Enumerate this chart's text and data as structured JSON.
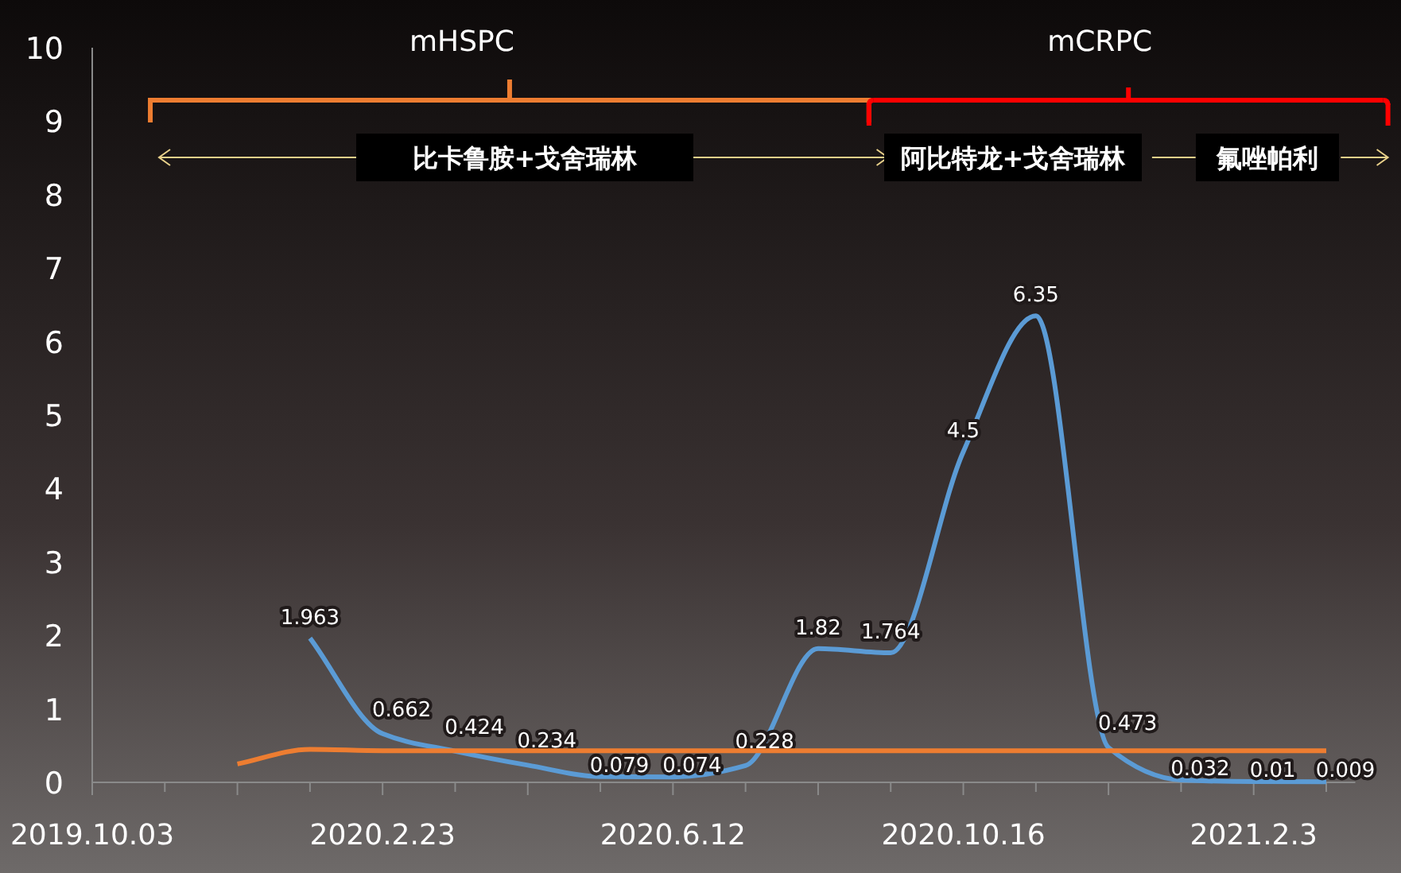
{
  "chart_data": {
    "type": "line",
    "categories": [
      "2019.10.03",
      null,
      null,
      null,
      "2020.2.23",
      null,
      null,
      null,
      "2020.6.12",
      null,
      null,
      null,
      "2020.10.16",
      null,
      null,
      null,
      "2021.2.3",
      null
    ],
    "series": [
      {
        "color": "#5b9bd5",
        "values": [
          null,
          null,
          null,
          1.963,
          0.662,
          0.424,
          0.234,
          0.079,
          0.074,
          0.228,
          1.82,
          1.764,
          4.5,
          6.35,
          0.473,
          0.032,
          0.01,
          0.009
        ],
        "value_labels": [
          null,
          null,
          null,
          "1.963",
          "0.662",
          "0.424",
          "0.234",
          "0.079",
          "0.074",
          "0.228",
          "1.82",
          "1.764",
          "4.5",
          "6.35",
          "0.473",
          "0.032",
          "0.01",
          "0.009"
        ]
      },
      {
        "color": "#ed7d31",
        "values": [
          null,
          null,
          0.25,
          0.45,
          0.43,
          0.43,
          0.43,
          0.43,
          0.43,
          0.43,
          0.43,
          0.43,
          0.43,
          0.43,
          0.43,
          0.43,
          0.43,
          0.43
        ]
      }
    ],
    "ylim": [
      0,
      10
    ],
    "yticks": [
      0,
      1,
      2,
      3,
      4,
      5,
      6,
      7,
      8,
      9,
      10
    ],
    "grid": false,
    "marker": "none",
    "line_style": "solid",
    "annotations": [
      "mHSPC",
      "mCRPC",
      "比卡鲁胺+戈舍瑞林",
      "阿比特龙+戈舍瑞林",
      "氟唑帕利"
    ]
  }
}
